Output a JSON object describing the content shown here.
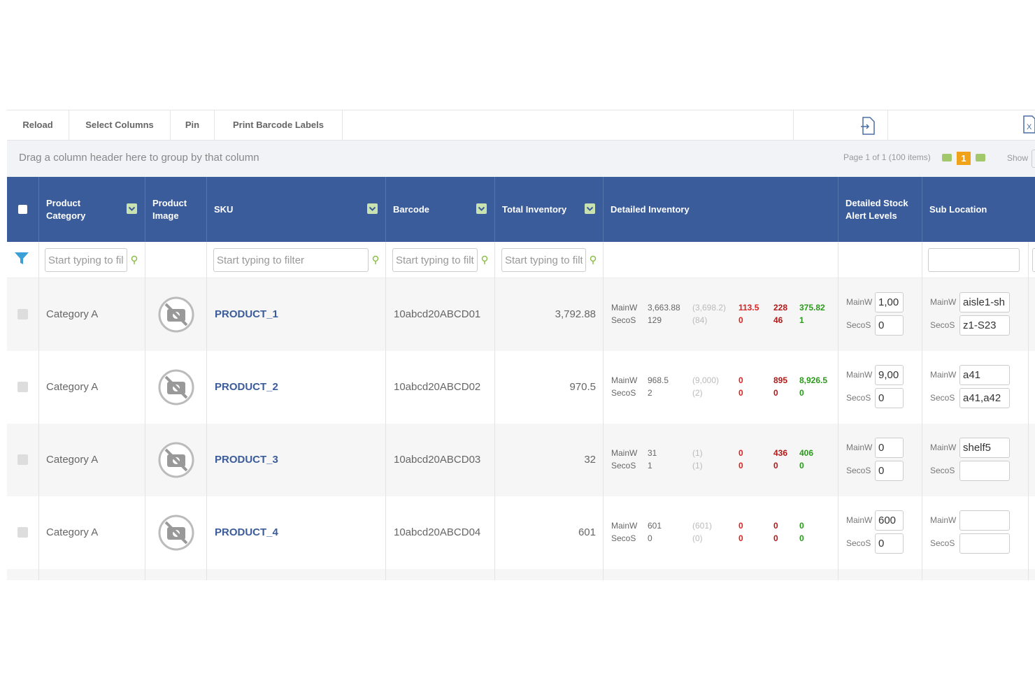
{
  "toolbar": {
    "buttons": [
      "Reload",
      "Select Columns",
      "Pin",
      "Print Barcode Labels"
    ]
  },
  "group_hint": "Drag a column header here to group by that column",
  "pager": {
    "text": "Page 1 of 1 (100 items)",
    "current": "1",
    "show": "Show"
  },
  "columns": [
    "Product Category",
    "Product Image",
    "SKU",
    "Barcode",
    "Total Inventory",
    "Detailed Inventory",
    "Detailed Stock Alert Levels",
    "Sub Location"
  ],
  "filter_placeholder": "Start typing to filter",
  "rows": [
    {
      "category": "Category A",
      "sku": "PRODUCT_1",
      "barcode": "10abcd20ABCD01",
      "total": "3,792.88",
      "detailed": [
        {
          "loc": "MainW",
          "values": [
            "3,663.88",
            "(3,698.2)",
            "113.5",
            "228",
            "375.82"
          ]
        },
        {
          "loc": "SecoS",
          "values": [
            "129",
            "(84)",
            "0",
            "46",
            "1"
          ]
        }
      ],
      "alerts": [
        {
          "loc": "MainW",
          "value": "1,00"
        },
        {
          "loc": "SecoS",
          "value": "0"
        }
      ],
      "sublocations": [
        {
          "loc": "MainW",
          "value": "aisle1-sh"
        },
        {
          "loc": "SecoS",
          "value": "z1-S23"
        }
      ]
    },
    {
      "category": "Category A",
      "sku": "PRODUCT_2",
      "barcode": "10abcd20ABCD02",
      "total": "970.5",
      "detailed": [
        {
          "loc": "MainW",
          "values": [
            "968.5",
            "(9,000)",
            "0",
            "895",
            "8,926.5"
          ]
        },
        {
          "loc": "SecoS",
          "values": [
            "2",
            "(2)",
            "0",
            "0",
            "0"
          ]
        }
      ],
      "alerts": [
        {
          "loc": "MainW",
          "value": "9,00"
        },
        {
          "loc": "SecoS",
          "value": "0"
        }
      ],
      "sublocations": [
        {
          "loc": "MainW",
          "value": "a41"
        },
        {
          "loc": "SecoS",
          "value": "a41,a42"
        }
      ]
    },
    {
      "category": "Category A",
      "sku": "PRODUCT_3",
      "barcode": "10abcd20ABCD03",
      "total": "32",
      "detailed": [
        {
          "loc": "MainW",
          "values": [
            "31",
            "(1)",
            "0",
            "436",
            "406"
          ]
        },
        {
          "loc": "SecoS",
          "values": [
            "1",
            "(1)",
            "0",
            "0",
            "0"
          ]
        }
      ],
      "alerts": [
        {
          "loc": "MainW",
          "value": "0"
        },
        {
          "loc": "SecoS",
          "value": "0"
        }
      ],
      "sublocations": [
        {
          "loc": "MainW",
          "value": "shelf5"
        },
        {
          "loc": "SecoS"
        }
      ]
    },
    {
      "category": "Category A",
      "sku": "PRODUCT_4",
      "barcode": "10abcd20ABCD04",
      "total": "601",
      "detailed": [
        {
          "loc": "MainW",
          "values": [
            "601",
            "(601)",
            "0",
            "0",
            "0"
          ]
        },
        {
          "loc": "SecoS",
          "values": [
            "0",
            "(0)",
            "0",
            "0",
            "0"
          ]
        }
      ],
      "alerts": [
        {
          "loc": "MainW",
          "value": "600"
        },
        {
          "loc": "SecoS",
          "value": "0"
        }
      ],
      "sublocations": [
        {
          "loc": "MainW"
        },
        {
          "loc": "SecoS"
        }
      ]
    }
  ]
}
